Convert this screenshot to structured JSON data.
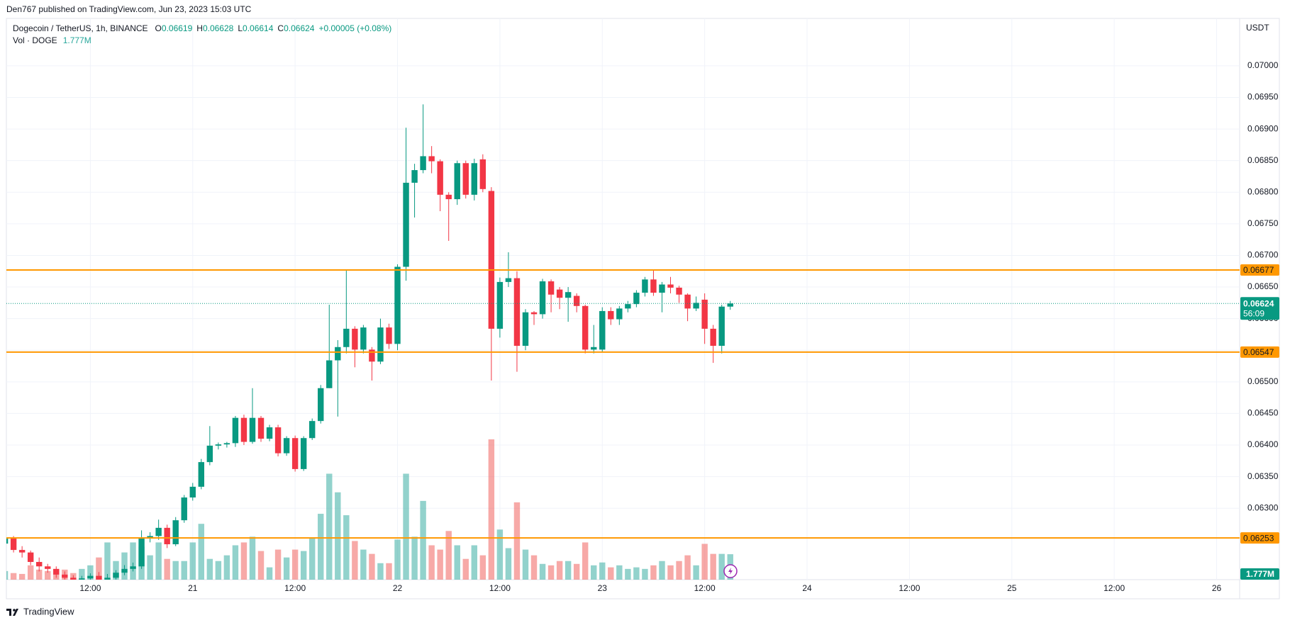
{
  "header": {
    "attribution": "Den767 published on TradingView.com, Jun 23, 2023 15:03 UTC"
  },
  "footer": {
    "brand": "TradingView"
  },
  "chart_data": {
    "type": "candlestick",
    "legend": {
      "symbol": "Dogecoin / TetherUS, 1h, BINANCE",
      "ohlc": [
        {
          "key": "O",
          "value": 0.06619
        },
        {
          "key": "H",
          "value": 0.06628
        },
        {
          "key": "L",
          "value": 0.06614
        },
        {
          "key": "C",
          "value": 0.06624
        }
      ],
      "change": "+0.00005 (+0.08%)"
    },
    "currency": "USDT",
    "up_color": "#089981",
    "down_color": "#f23645",
    "volume_up_color": "rgba(38,166,154,0.5)",
    "volume_down_color": "rgba(239,83,80,0.5)",
    "grid": true,
    "xlim": [
      0.16,
      144.7
    ],
    "xticks": [
      {
        "value": 10,
        "label": "12:00"
      },
      {
        "value": 22,
        "label": "21"
      },
      {
        "value": 34,
        "label": "12:00"
      },
      {
        "value": 46,
        "label": "22"
      },
      {
        "value": 58,
        "label": "12:00"
      },
      {
        "value": 70,
        "label": "23"
      },
      {
        "value": 82,
        "label": "12:00"
      },
      {
        "value": 94,
        "label": "24"
      },
      {
        "value": 106,
        "label": "12:00"
      },
      {
        "value": 118,
        "label": "25"
      },
      {
        "value": 130,
        "label": "12:00"
      },
      {
        "value": 142,
        "label": "26"
      }
    ],
    "ylim": [
      0.06187,
      0.07075
    ],
    "yticks": [
      {
        "value": 0.063,
        "label": "0.06300"
      },
      {
        "value": 0.0635,
        "label": "0.06350"
      },
      {
        "value": 0.064,
        "label": "0.06400"
      },
      {
        "value": 0.0645,
        "label": "0.06450"
      },
      {
        "value": 0.065,
        "label": "0.06500"
      },
      {
        "value": 0.0655,
        "label": "0.06550"
      },
      {
        "value": 0.066,
        "label": "0.06600"
      },
      {
        "value": 0.0665,
        "label": "0.06650"
      },
      {
        "value": 0.067,
        "label": "0.06700"
      },
      {
        "value": 0.0675,
        "label": "0.06750"
      },
      {
        "value": 0.068,
        "label": "0.06800"
      },
      {
        "value": 0.0685,
        "label": "0.06850"
      },
      {
        "value": 0.069,
        "label": "0.06900"
      },
      {
        "value": 0.0695,
        "label": "0.06950"
      },
      {
        "value": 0.07,
        "label": "0.07000"
      }
    ],
    "open": [
      0.06244,
      0.06252,
      0.06234,
      0.0623,
      0.06215,
      0.06208,
      0.06204,
      0.06195,
      0.0619,
      0.06185,
      0.06189,
      0.06193,
      0.06186,
      0.0619,
      0.06198,
      0.06204,
      0.06208,
      0.06252,
      0.06256,
      0.06269,
      0.06243,
      0.06281,
      0.06317,
      0.06334,
      0.06373,
      0.06399,
      0.06401,
      0.06403,
      0.06443,
      0.06405,
      0.06443,
      0.0641,
      0.06428,
      0.06387,
      0.06411,
      0.06362,
      0.06411,
      0.06438,
      0.0649,
      0.06534,
      0.06555,
      0.06584,
      0.06551,
      0.06551,
      0.06532,
      0.06586,
      0.0656,
      0.06682,
      0.06815,
      0.06835,
      0.06857,
      0.06849,
      0.06796,
      0.06789,
      0.06846,
      0.06796,
      0.06852,
      0.06802,
      0.06584,
      0.06658,
      0.06664,
      0.06557,
      0.0661,
      0.06607,
      0.06659,
      0.06646,
      0.06633,
      0.06636,
      0.0662,
      0.06551,
      0.06551,
      0.06612,
      0.06599,
      0.06616,
      0.06623,
      0.06641,
      0.06662,
      0.06641,
      0.06654,
      0.06649,
      0.06638,
      0.06616,
      0.0663,
      0.06584,
      0.06557,
      0.06619
    ],
    "high": [
      0.06258,
      0.06256,
      0.0624,
      0.06233,
      0.06222,
      0.06212,
      0.06208,
      0.062,
      0.06194,
      0.06193,
      0.06197,
      0.06199,
      0.06196,
      0.06202,
      0.0621,
      0.06214,
      0.06265,
      0.06262,
      0.06282,
      0.06274,
      0.06286,
      0.06321,
      0.0634,
      0.06378,
      0.0643,
      0.06404,
      0.06405,
      0.06446,
      0.06448,
      0.0649,
      0.06446,
      0.06432,
      0.06432,
      0.06414,
      0.06415,
      0.06414,
      0.06442,
      0.06495,
      0.06622,
      0.06566,
      0.06677,
      0.06588,
      0.0659,
      0.06555,
      0.066,
      0.06592,
      0.06686,
      0.06902,
      0.06845,
      0.06939,
      0.06873,
      0.06852,
      0.068,
      0.0685,
      0.0685,
      0.06853,
      0.0686,
      0.06808,
      0.06665,
      0.06705,
      0.06675,
      0.06615,
      0.06612,
      0.06663,
      0.06662,
      0.0665,
      0.0665,
      0.0664,
      0.06622,
      0.0659,
      0.06618,
      0.06618,
      0.0662,
      0.06628,
      0.06645,
      0.06666,
      0.06677,
      0.06658,
      0.06666,
      0.06652,
      0.0664,
      0.06635,
      0.0664,
      0.0659,
      0.06622,
      0.06628
    ],
    "low": [
      0.0624,
      0.0623,
      0.06222,
      0.0621,
      0.062,
      0.06198,
      0.0619,
      0.06185,
      0.0618,
      0.06182,
      0.06185,
      0.0618,
      0.06182,
      0.06186,
      0.06194,
      0.062,
      0.06204,
      0.06246,
      0.0625,
      0.06237,
      0.0624,
      0.06277,
      0.06312,
      0.0633,
      0.06368,
      0.06393,
      0.06396,
      0.06397,
      0.064,
      0.06402,
      0.06405,
      0.06406,
      0.06382,
      0.06383,
      0.06358,
      0.06359,
      0.06408,
      0.06434,
      0.0649,
      0.06445,
      0.06545,
      0.06523,
      0.06545,
      0.06502,
      0.06528,
      0.06552,
      0.0655,
      0.0666,
      0.0676,
      0.0683,
      0.0683,
      0.0677,
      0.06723,
      0.0678,
      0.0679,
      0.06787,
      0.068,
      0.06502,
      0.0657,
      0.0665,
      0.06516,
      0.0655,
      0.0659,
      0.066,
      0.0661,
      0.06615,
      0.06595,
      0.0661,
      0.06545,
      0.06545,
      0.06548,
      0.0659,
      0.0659,
      0.0661,
      0.06618,
      0.06635,
      0.06636,
      0.0661,
      0.0664,
      0.06625,
      0.06596,
      0.06612,
      0.0656,
      0.0653,
      0.06545,
      0.06614
    ],
    "close": [
      0.06252,
      0.06234,
      0.0623,
      0.06215,
      0.06208,
      0.06204,
      0.06195,
      0.0619,
      0.06185,
      0.06189,
      0.06193,
      0.06186,
      0.0619,
      0.06198,
      0.06204,
      0.06208,
      0.06252,
      0.06256,
      0.06269,
      0.06243,
      0.06281,
      0.06317,
      0.06334,
      0.06373,
      0.06399,
      0.06401,
      0.06403,
      0.06443,
      0.06405,
      0.06443,
      0.0641,
      0.06428,
      0.06387,
      0.06411,
      0.06362,
      0.06411,
      0.06438,
      0.0649,
      0.06534,
      0.06555,
      0.06584,
      0.06551,
      0.06586,
      0.06532,
      0.06586,
      0.0656,
      0.06682,
      0.06815,
      0.06835,
      0.06857,
      0.06849,
      0.06796,
      0.06789,
      0.06846,
      0.06796,
      0.06846,
      0.06805,
      0.06584,
      0.06658,
      0.06664,
      0.06557,
      0.0661,
      0.06607,
      0.06659,
      0.06638,
      0.06633,
      0.06642,
      0.0662,
      0.06551,
      0.06555,
      0.06612,
      0.06599,
      0.06616,
      0.06623,
      0.06641,
      0.06662,
      0.06641,
      0.06654,
      0.06649,
      0.06638,
      0.06616,
      0.06625,
      0.06584,
      0.06557,
      0.06619,
      0.06624
    ],
    "volume": {
      "name": "Vol · DOGE",
      "last_label": "1.777M",
      "values": [
        0.6,
        0.46,
        0.4,
        1.0,
        0.7,
        0.6,
        0.46,
        0.7,
        0.46,
        0.75,
        1.0,
        1.55,
        2.6,
        1.3,
        1.9,
        2.6,
        2.3,
        1.7,
        2.6,
        1.45,
        1.3,
        1.3,
        2.6,
        3.9,
        1.45,
        1.3,
        1.7,
        2.4,
        2.6,
        3.0,
        2.0,
        0.86,
        2.1,
        1.55,
        2.1,
        2.0,
        2.9,
        4.6,
        7.4,
        6.1,
        4.5,
        2.7,
        2.1,
        1.8,
        1.15,
        1.15,
        2.8,
        7.4,
        3.0,
        5.5,
        2.4,
        2.1,
        3.4,
        2.4,
        1.45,
        2.4,
        1.7,
        9.8,
        3.5,
        2.2,
        5.4,
        2.1,
        1.7,
        1.1,
        1.0,
        1.3,
        1.3,
        1.1,
        2.6,
        1.0,
        1.2,
        0.86,
        1.0,
        0.75,
        0.86,
        0.75,
        1.0,
        1.3,
        1.0,
        1.3,
        1.7,
        1.0,
        2.5,
        1.8,
        1.8,
        1.777
      ]
    },
    "levels": [
      {
        "value": 0.06677,
        "color": "#ff9800"
      },
      {
        "value": 0.06547,
        "color": "#ff9800"
      },
      {
        "value": 0.06253,
        "color": "#ff9800"
      }
    ],
    "last_price": {
      "value": 0.06624,
      "countdown": "56:09",
      "color": "#089981"
    }
  }
}
